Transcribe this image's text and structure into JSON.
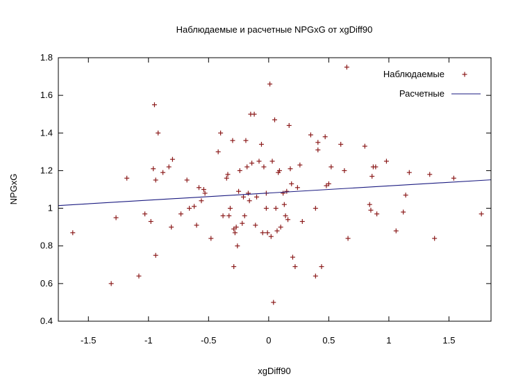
{
  "chart_data": {
    "type": "scatter",
    "title": "Наблюдаемые и расчетные NPGxG от xgDiff90",
    "xlabel": "xgDiff90",
    "ylabel": "NPGxG",
    "xlim": [
      -1.75,
      1.85
    ],
    "ylim": [
      0.4,
      1.8
    ],
    "xticks": [
      {
        "v": -1.5,
        "label": "-1.5"
      },
      {
        "v": -1,
        "label": "-1"
      },
      {
        "v": -0.5,
        "label": "-0.5"
      },
      {
        "v": 0,
        "label": "0"
      },
      {
        "v": 0.5,
        "label": "0.5"
      },
      {
        "v": 1,
        "label": "1"
      },
      {
        "v": 1.5,
        "label": "1.5"
      }
    ],
    "yticks": [
      {
        "v": 0.4,
        "label": "0.4"
      },
      {
        "v": 0.6,
        "label": "0.6"
      },
      {
        "v": 0.8,
        "label": "0.8"
      },
      {
        "v": 1.0,
        "label": "1"
      },
      {
        "v": 1.2,
        "label": "1.2"
      },
      {
        "v": 1.4,
        "label": "1.4"
      },
      {
        "v": 1.6,
        "label": "1.6"
      },
      {
        "v": 1.8,
        "label": "1.8"
      }
    ],
    "grid": false,
    "legend_position": "top-right",
    "series": [
      {
        "name": "Наблюдаемые",
        "kind": "points",
        "color": "#8b1a1a",
        "marker": "+",
        "points": [
          [
            -1.63,
            0.87
          ],
          [
            -1.31,
            0.6
          ],
          [
            -1.27,
            0.95
          ],
          [
            -1.18,
            1.16
          ],
          [
            -1.08,
            0.64
          ],
          [
            -1.03,
            0.97
          ],
          [
            -0.98,
            0.93
          ],
          [
            -0.96,
            1.21
          ],
          [
            -0.95,
            1.55
          ],
          [
            -0.94,
            1.15
          ],
          [
            -0.94,
            0.75
          ],
          [
            -0.92,
            1.4
          ],
          [
            -0.88,
            1.19
          ],
          [
            -0.83,
            1.22
          ],
          [
            -0.81,
            0.9
          ],
          [
            -0.8,
            1.26
          ],
          [
            -0.73,
            0.97
          ],
          [
            -0.68,
            1.15
          ],
          [
            -0.66,
            1.0
          ],
          [
            -0.62,
            1.01
          ],
          [
            -0.6,
            0.91
          ],
          [
            -0.58,
            1.11
          ],
          [
            -0.56,
            1.04
          ],
          [
            -0.54,
            1.1
          ],
          [
            -0.53,
            1.08
          ],
          [
            -0.48,
            0.84
          ],
          [
            -0.42,
            1.3
          ],
          [
            -0.4,
            1.4
          ],
          [
            -0.38,
            0.96
          ],
          [
            -0.35,
            1.16
          ],
          [
            -0.34,
            1.18
          ],
          [
            -0.33,
            0.96
          ],
          [
            -0.32,
            1.0
          ],
          [
            -0.3,
            1.36
          ],
          [
            -0.29,
            0.89
          ],
          [
            -0.29,
            0.69
          ],
          [
            -0.28,
            0.87
          ],
          [
            -0.27,
            0.9
          ],
          [
            -0.26,
            0.8
          ],
          [
            -0.25,
            1.09
          ],
          [
            -0.24,
            1.2
          ],
          [
            -0.22,
            0.92
          ],
          [
            -0.21,
            1.06
          ],
          [
            -0.2,
            0.96
          ],
          [
            -0.19,
            1.36
          ],
          [
            -0.18,
            1.22
          ],
          [
            -0.17,
            1.08
          ],
          [
            -0.16,
            1.04
          ],
          [
            -0.15,
            1.5
          ],
          [
            -0.14,
            1.24
          ],
          [
            -0.12,
            1.5
          ],
          [
            -0.11,
            0.91
          ],
          [
            -0.1,
            1.06
          ],
          [
            -0.08,
            1.25
          ],
          [
            -0.06,
            1.34
          ],
          [
            -0.05,
            0.87
          ],
          [
            -0.04,
            1.22
          ],
          [
            -0.02,
            1.0
          ],
          [
            -0.02,
            1.08
          ],
          [
            -0.01,
            0.87
          ],
          [
            0.01,
            1.66
          ],
          [
            0.02,
            0.85
          ],
          [
            0.03,
            1.25
          ],
          [
            0.04,
            0.5
          ],
          [
            0.05,
            1.47
          ],
          [
            0.06,
            1.0
          ],
          [
            0.07,
            0.88
          ],
          [
            0.08,
            1.19
          ],
          [
            0.09,
            1.2
          ],
          [
            0.1,
            0.9
          ],
          [
            0.12,
            1.08
          ],
          [
            0.13,
            1.02
          ],
          [
            0.14,
            0.96
          ],
          [
            0.15,
            1.09
          ],
          [
            0.16,
            0.94
          ],
          [
            0.17,
            1.44
          ],
          [
            0.18,
            1.21
          ],
          [
            0.19,
            1.13
          ],
          [
            0.2,
            0.74
          ],
          [
            0.22,
            0.69
          ],
          [
            0.24,
            1.11
          ],
          [
            0.26,
            1.23
          ],
          [
            0.28,
            0.93
          ],
          [
            0.35,
            1.39
          ],
          [
            0.39,
            1.0
          ],
          [
            0.39,
            0.64
          ],
          [
            0.41,
            1.35
          ],
          [
            0.41,
            1.31
          ],
          [
            0.44,
            0.69
          ],
          [
            0.47,
            1.38
          ],
          [
            0.48,
            1.12
          ],
          [
            0.5,
            1.13
          ],
          [
            0.52,
            1.22
          ],
          [
            0.6,
            1.34
          ],
          [
            0.63,
            1.2
          ],
          [
            0.65,
            1.75
          ],
          [
            0.66,
            0.84
          ],
          [
            0.8,
            1.33
          ],
          [
            0.84,
            1.02
          ],
          [
            0.85,
            0.99
          ],
          [
            0.86,
            1.17
          ],
          [
            0.87,
            1.22
          ],
          [
            0.89,
            1.22
          ],
          [
            0.9,
            0.97
          ],
          [
            0.98,
            1.25
          ],
          [
            1.06,
            0.88
          ],
          [
            1.12,
            0.98
          ],
          [
            1.14,
            1.07
          ],
          [
            1.17,
            1.19
          ],
          [
            1.34,
            1.18
          ],
          [
            1.38,
            0.84
          ],
          [
            1.54,
            1.16
          ],
          [
            1.77,
            0.97
          ]
        ]
      },
      {
        "name": "Расчетные",
        "kind": "line",
        "color": "#1a1a80",
        "intercept": 1.081,
        "slope": 0.038
      }
    ]
  }
}
